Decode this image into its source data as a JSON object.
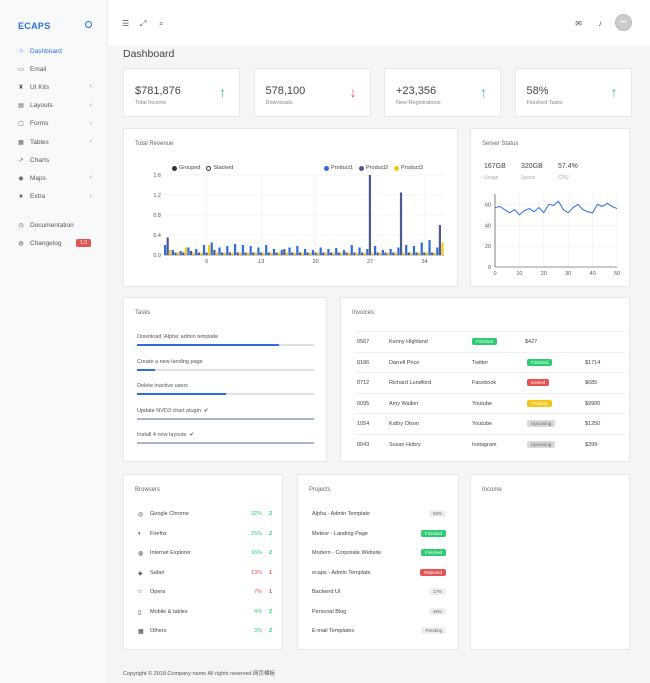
{
  "brand": "ECAPS",
  "sidebar": [
    {
      "label": "Dashboard",
      "icon": "home-icon",
      "active": true,
      "chevron": false
    },
    {
      "label": "Email",
      "icon": "mail-icon",
      "active": false,
      "chevron": false
    },
    {
      "label": "UI Kits",
      "icon": "kit-icon",
      "active": false,
      "chevron": true
    },
    {
      "label": "Layouts",
      "icon": "layout-icon",
      "active": false,
      "chevron": true
    },
    {
      "label": "Forms",
      "icon": "form-icon",
      "active": false,
      "chevron": true
    },
    {
      "label": "Tables",
      "icon": "table-icon",
      "active": false,
      "chevron": true
    },
    {
      "label": "Charts",
      "icon": "chart-icon",
      "active": false,
      "chevron": false
    },
    {
      "label": "Maps",
      "icon": "map-icon",
      "active": false,
      "chevron": true
    },
    {
      "label": "Extra",
      "icon": "star-icon",
      "active": false,
      "chevron": true
    }
  ],
  "sidebar_extra": [
    {
      "label": "Documentation",
      "icon": "doc-icon"
    },
    {
      "label": "Changelog",
      "icon": "globe-icon",
      "badge": "1.0"
    }
  ],
  "page_title": "Dashboard",
  "stats": [
    {
      "value": "$781,876",
      "label": "Total Income",
      "arrow": "↑",
      "color": "#2ecc71"
    },
    {
      "value": "578,100",
      "label": "Downloads",
      "arrow": "↓",
      "color": "#e55353"
    },
    {
      "value": "+23,356",
      "label": "New Registrations",
      "arrow": "↑",
      "color": "#2ecc71"
    },
    {
      "value": "58%",
      "label": "Finished Tasks",
      "arrow": "↑",
      "color": "#2ecc71"
    }
  ],
  "revenue": {
    "title": "Total Revenue",
    "toggle": [
      "Grouped",
      "Stacked"
    ],
    "legend": [
      {
        "name": "Product1",
        "color": "#2d6cdf"
      },
      {
        "name": "Product2",
        "color": "#4a5a8a"
      },
      {
        "name": "Product3",
        "color": "#f5c518"
      }
    ]
  },
  "server": {
    "title": "Server Status",
    "metrics": [
      {
        "value": "167GB",
        "label": "Usage"
      },
      {
        "value": "320GB",
        "label": "Space"
      },
      {
        "value": "57.4%",
        "label": "CPU"
      }
    ]
  },
  "chart_data": [
    {
      "type": "bar",
      "title": "Total Revenue",
      "x_ticks": [
        "6",
        "13",
        "20",
        "27",
        "34"
      ],
      "y_ticks": [
        "0.0",
        "0.4",
        "0.8",
        "1.2",
        "1.6"
      ],
      "ylim": [
        0,
        1.6
      ],
      "series": [
        {
          "name": "Product1",
          "color": "#2d6cdf",
          "values": [
            0.2,
            0.1,
            0.08,
            0.15,
            0.12,
            0.2,
            0.25,
            0.15,
            0.18,
            0.22,
            0.2,
            0.18,
            0.15,
            0.2,
            0.12,
            0.1,
            0.15,
            0.18,
            0.12,
            0.1,
            0.15,
            0.12,
            0.14,
            0.1,
            0.2,
            0.15,
            0.12,
            0.18,
            0.1,
            0.12,
            0.15,
            0.2,
            0.18,
            0.25,
            0.3,
            0.15
          ]
        },
        {
          "name": "Product2",
          "color": "#4a5a8a",
          "values": [
            0.35,
            0.05,
            0.05,
            0.08,
            0.05,
            0.05,
            0.1,
            0.05,
            0.05,
            0.05,
            0.05,
            0.05,
            0.05,
            0.05,
            0.05,
            0.12,
            0.05,
            0.05,
            0.05,
            0.05,
            0.05,
            0.05,
            0.05,
            0.05,
            0.05,
            0.05,
            1.6,
            0.05,
            0.05,
            0.05,
            1.25,
            0.05,
            0.05,
            0.05,
            0.05,
            0.6
          ]
        },
        {
          "name": "Product3",
          "color": "#f5c518",
          "values": [
            0.1,
            0.05,
            0.15,
            0.05,
            0.05,
            0.2,
            0.05,
            0.05,
            0.05,
            0.05,
            0.05,
            0.05,
            0.05,
            0.05,
            0.05,
            0.05,
            0.05,
            0.05,
            0.05,
            0.05,
            0.05,
            0.05,
            0.05,
            0.05,
            0.05,
            0.05,
            0.05,
            0.05,
            0.05,
            0.05,
            0.05,
            0.05,
            0.05,
            0.05,
            0.05,
            0.25
          ]
        }
      ]
    },
    {
      "type": "line",
      "title": "Server Status",
      "x_ticks": [
        "0",
        "10",
        "20",
        "30",
        "40",
        "50"
      ],
      "y_ticks": [
        "0",
        "20",
        "40",
        "60"
      ],
      "xlim": [
        0,
        50
      ],
      "ylim": [
        0,
        70
      ],
      "series": [
        {
          "name": "",
          "color": "#2d6cdf",
          "x": [
            0,
            2,
            4,
            6,
            8,
            10,
            12,
            14,
            16,
            18,
            20,
            22,
            24,
            26,
            28,
            30,
            32,
            34,
            36,
            38,
            40,
            42,
            44,
            46,
            48,
            50
          ],
          "y": [
            57,
            58,
            55,
            52,
            55,
            50,
            54,
            56,
            53,
            57,
            52,
            60,
            59,
            63,
            55,
            52,
            57,
            60,
            55,
            53,
            52,
            60,
            58,
            61,
            58,
            56
          ]
        }
      ]
    }
  ],
  "tasks": {
    "title": "Tasks",
    "items": [
      {
        "label": "Download 'Alpha' admin template",
        "progress": 0.8,
        "done": false
      },
      {
        "label": "Create a new landing page",
        "progress": 0.1,
        "done": false
      },
      {
        "label": "Delete inactive users",
        "progress": 0.5,
        "done": false
      },
      {
        "label": "Update NVD3 chart plugin",
        "progress": 1.0,
        "done": true
      },
      {
        "label": "Install 4 new layouts",
        "progress": 1.0,
        "done": true
      }
    ]
  },
  "invoices": {
    "title": "Invoices",
    "rows": [
      {
        "id": "0567",
        "name": "Kenny Highland",
        "source": "",
        "status": "Finished",
        "status_color": "#2ecc71",
        "amount": "$427"
      },
      {
        "id": "0186",
        "name": "Darrell Price",
        "source": "Twitter",
        "status": "Finished",
        "status_color": "#2ecc71",
        "amount": "$1714"
      },
      {
        "id": "0712",
        "name": "Richard Lundford",
        "source": "Facebook",
        "status": "Denied",
        "status_color": "#e55353",
        "amount": "$685"
      },
      {
        "id": "0095",
        "name": "Amy Walker",
        "source": "Youtube",
        "status": "Pending",
        "status_color": "#f5c518",
        "amount": "$9900"
      },
      {
        "id": "1054",
        "name": "Kathy Olson",
        "source": "Youtube",
        "status": "Upcoming",
        "status_color": "#d8d8d8",
        "amount": "$1250"
      },
      {
        "id": "0043",
        "name": "Susan Hobry",
        "source": "Instagram",
        "status": "Upcoming",
        "status_color": "#d8d8d8",
        "amount": "$399"
      }
    ]
  },
  "browsers": {
    "title": "Browsers",
    "items": [
      {
        "name": "Google Chrome",
        "pct": "32%",
        "rank": "2",
        "color": "#2ecc71",
        "arrow_color": "#2ecc71"
      },
      {
        "name": "Firefox",
        "pct": "25%",
        "rank": "2",
        "color": "#2ecc71",
        "arrow_color": "#2ecc71"
      },
      {
        "name": "Internet Explorer",
        "pct": "16%",
        "rank": "2",
        "color": "#2ecc71",
        "arrow_color": "#2ecc71"
      },
      {
        "name": "Safari",
        "pct": "13%",
        "rank": "1",
        "color": "#e55353",
        "arrow_color": "#e55353"
      },
      {
        "name": "Opera",
        "pct": "7%",
        "rank": "1",
        "color": "#e55353",
        "arrow_color": "#e55353"
      },
      {
        "name": "Mobile & tables",
        "pct": "4%",
        "rank": "2",
        "color": "#2ecc71",
        "arrow_color": "#2ecc71"
      },
      {
        "name": "Others",
        "pct": "3%",
        "rank": "2",
        "color": "#2ecc71",
        "arrow_color": "#2ecc71"
      }
    ]
  },
  "projects": {
    "title": "Projects",
    "items": [
      {
        "name": "Alpha - Admin Template",
        "badge": "82%",
        "color": "#eeeeee",
        "text": "#666"
      },
      {
        "name": "Meteor - Landing Page",
        "badge": "Finished",
        "color": "#2ecc71",
        "text": "#fff"
      },
      {
        "name": "Modern - Corporate Website",
        "badge": "Finished",
        "color": "#2ecc71",
        "text": "#fff"
      },
      {
        "name": "ecaps - Admin Template",
        "badge": "Rejected",
        "color": "#e55353",
        "text": "#fff"
      },
      {
        "name": "Backend UI",
        "badge": "17%",
        "color": "#eeeeee",
        "text": "#666"
      },
      {
        "name": "Personal Blog",
        "badge": "48%",
        "color": "#eeeeee",
        "text": "#666"
      },
      {
        "name": "E-mail Templates",
        "badge": "Pending",
        "color": "#eeeeee",
        "text": "#666"
      }
    ]
  },
  "income": {
    "title": "Income"
  },
  "footer": "Copyright © 2018.Company name All rights reserved.网页模板"
}
